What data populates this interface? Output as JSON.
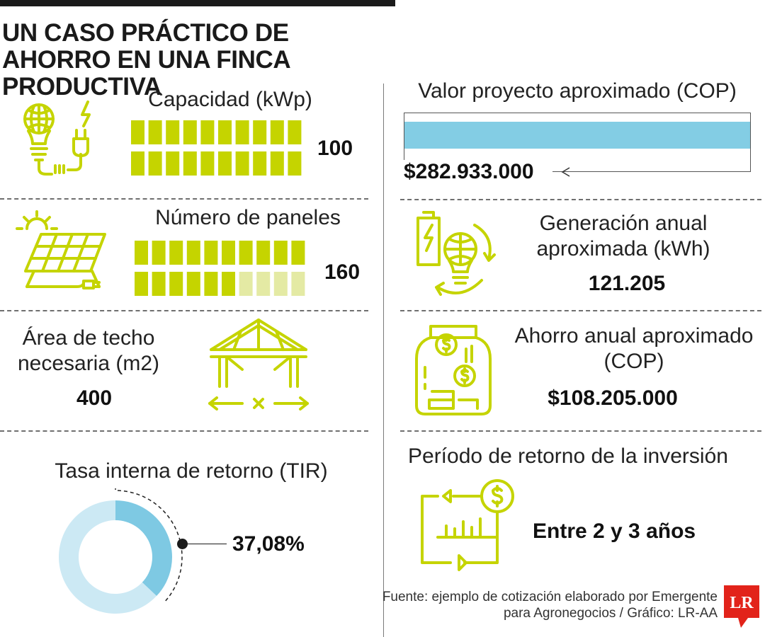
{
  "title": "UN CASO PRÁCTICO DE AHORRO EN UNA FINCA PRODUCTIVA",
  "colors": {
    "accent_strong": "#c5d400",
    "accent_light": "#e4eaa4",
    "bar_blue": "#83cde4",
    "donut_dark": "#7ec9e3",
    "donut_light": "#cce9f4",
    "brand_red": "#e2231a"
  },
  "items": {
    "capacidad": {
      "label": "Capacidad (kWp)",
      "value": "100"
    },
    "paneles": {
      "label": "Número de paneles",
      "value": "160"
    },
    "area": {
      "label": "Área de techo necesaria (m2)",
      "value": "400"
    },
    "tir": {
      "label": "Tasa interna de retorno (TIR)",
      "value": "37,08%"
    },
    "valor": {
      "label": "Valor proyecto aproximado (COP)",
      "value": "$282.933.000"
    },
    "generacion": {
      "label": "Generación anual aproximada (kWh)",
      "value": "121.205"
    },
    "ahorro": {
      "label": "Ahorro anual aproximado (COP)",
      "value": "$108.205.000"
    },
    "periodo": {
      "label": "Período de retorno de la inversión",
      "value": "Entre 2 y 3 años"
    }
  },
  "source": "Fuente: ejemplo de cotización elaborado por Emergente para Agronegocios / Gráfico: LR-AA",
  "logo": "LR",
  "icons": [
    "lightbulb-plug-icon",
    "solar-panel-icon",
    "roof-structure-icon",
    "battery-bulb-cycle-icon",
    "money-jar-icon",
    "return-cycle-icon"
  ],
  "chart_data": [
    {
      "type": "bar",
      "title": "Capacidad (kWp)",
      "values": [
        100
      ],
      "max": 100,
      "display": "pictogram"
    },
    {
      "type": "bar",
      "title": "Número de paneles",
      "values": [
        160
      ],
      "max": 200,
      "display": "pictogram"
    },
    {
      "type": "bar",
      "title": "Valor proyecto aproximado (COP)",
      "values": [
        282933000
      ]
    },
    {
      "type": "pie",
      "title": "Tasa interna de retorno (TIR)",
      "values": [
        37.08,
        62.92
      ],
      "display": "donut"
    }
  ]
}
